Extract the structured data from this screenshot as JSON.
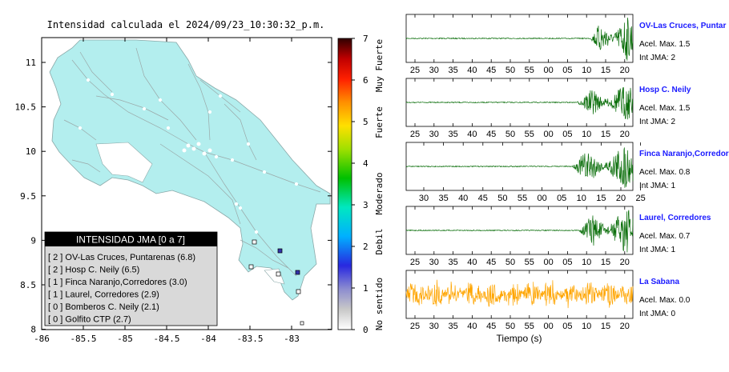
{
  "map": {
    "title": "Intensidad calculada el 2024/09/23_10:30:32_p.m.",
    "x_ticks": [
      "-86",
      "-85.5",
      "-85",
      "-84.5",
      "-84",
      "-83.5",
      "-83"
    ],
    "y_ticks": [
      "11",
      "10.5",
      "10",
      "9.5",
      "9",
      "8.5",
      "8"
    ],
    "land_color": "#b3eeee",
    "legend": {
      "header": "INTENSIDAD JMA [0 a 7]",
      "rows": [
        "[ 2 ]  OV-Las Cruces, Puntarenas (6.8)",
        "[ 2 ]  Hosp C. Neily (6.5)",
        "[ 1 ]  Finca Naranjo,Corredores (3.0)",
        "[ 1 ]  Laurel, Corredores (2.9)",
        "[ 0 ]  Bomberos C. Neily (2.1)",
        "[ 0 ]  Golfito CTP (2.7)"
      ]
    }
  },
  "colorbar": {
    "ticks": [
      "7",
      "6",
      "5",
      "4",
      "3",
      "2",
      "1",
      "0"
    ],
    "labels": [
      "Muy Fuerte",
      "Fuerte",
      "Moderado",
      "Debil",
      "No sentido"
    ]
  },
  "seismograms": {
    "xlabel": "Tiempo (s)",
    "traces": [
      {
        "station": "OV-Las Cruces, Puntar",
        "accel": "Acel. Max. 1.5",
        "jma": "Int JMA: 2",
        "color": "#0a6e0a",
        "ticks": [
          "25",
          "30",
          "35",
          "40",
          "45",
          "50",
          "55",
          "00",
          "05",
          "10",
          "15",
          "20"
        ]
      },
      {
        "station": "Hosp C. Neily",
        "accel": "Acel. Max. 1.5",
        "jma": "Int JMA: 2",
        "color": "#0a6e0a",
        "ticks": [
          "25",
          "30",
          "35",
          "40",
          "45",
          "50",
          "55",
          "00",
          "05",
          "10",
          "15",
          "20"
        ]
      },
      {
        "station": "Finca Naranjo,Corredor",
        "accel": "Acel. Max. 0.8",
        "jma": "Int JMA: 1",
        "color": "#0a6e0a",
        "ticks": [
          "30",
          "35",
          "40",
          "45",
          "50",
          "55",
          "00",
          "05",
          "10",
          "15",
          "20",
          "25"
        ]
      },
      {
        "station": "Laurel, Corredores",
        "accel": "Acel. Max. 0.7",
        "jma": "Int JMA: 1",
        "color": "#0a6e0a",
        "ticks": [
          "25",
          "30",
          "35",
          "40",
          "45",
          "50",
          "55",
          "00",
          "05",
          "10",
          "15",
          "20"
        ]
      },
      {
        "station": "La Sabana",
        "accel": "Acel. Max. 0.0",
        "jma": "Int JMA: 0",
        "color": "#ffa500",
        "ticks": [
          "25",
          "30",
          "35",
          "40",
          "45",
          "50",
          "55",
          "00",
          "05",
          "10",
          "15",
          "20"
        ]
      }
    ]
  },
  "chart_data": [
    {
      "type": "map",
      "title": "Intensidad calculada el 2024/09/23_10:30:32_p.m.",
      "xlim": [
        -86,
        -82.6
      ],
      "ylim": [
        8,
        11.3
      ],
      "stations": [
        {
          "name": "OV-Las Cruces, Puntarenas",
          "jma": 2,
          "value": 6.8
        },
        {
          "name": "Hosp C. Neily",
          "jma": 2,
          "value": 6.5
        },
        {
          "name": "Finca Naranjo,Corredores",
          "jma": 1,
          "value": 3.0
        },
        {
          "name": "Laurel, Corredores",
          "jma": 1,
          "value": 2.9
        },
        {
          "name": "Bomberos C. Neily",
          "jma": 0,
          "value": 2.1
        },
        {
          "name": "Golfito CTP",
          "jma": 0,
          "value": 2.7
        }
      ]
    },
    {
      "type": "colorbar",
      "range": [
        0,
        7
      ],
      "labels": [
        "Muy Fuerte",
        "Fuerte",
        "Moderado",
        "Debil",
        "No sentido"
      ]
    }
  ]
}
